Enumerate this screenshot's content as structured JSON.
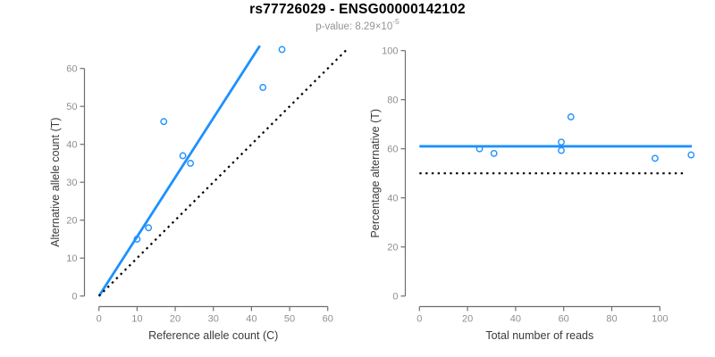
{
  "header": {
    "title": "rs77726029 - ENSG00000142102",
    "subtitle_prefix": "p-value: 8.29×10",
    "subtitle_exponent": "-5"
  },
  "colors": {
    "accent_blue": "#1E90FF",
    "dotted_black": "#000000",
    "axis_gray": "#6e6e6e",
    "tick_label_gray": "#8f8f8f",
    "axis_title_dark": "#3a3a3a",
    "subtitle_gray": "#949494"
  },
  "chart_data": [
    {
      "type": "scatter",
      "panel": "left",
      "xlabel": "Reference allele count (C)",
      "ylabel": "Alternative allele count (T)",
      "xlim": [
        0,
        60
      ],
      "ylim": [
        0,
        60
      ],
      "xticks": [
        0,
        10,
        20,
        30,
        40,
        50,
        60
      ],
      "yticks": [
        0,
        10,
        20,
        30,
        40,
        50,
        60
      ],
      "grid": false,
      "legend": "none",
      "points": [
        [
          10,
          15
        ],
        [
          13,
          18
        ],
        [
          17,
          46
        ],
        [
          22,
          37
        ],
        [
          24,
          35
        ],
        [
          43,
          55
        ],
        [
          48,
          65
        ]
      ],
      "lines": [
        {
          "name": "fit-line",
          "style": "solid",
          "color_key": "accent_blue",
          "from": [
            0,
            0
          ],
          "to": [
            42.2,
            66
          ]
        },
        {
          "name": "identity-line",
          "style": "dotted",
          "color_key": "dotted_black",
          "from": [
            0,
            0
          ],
          "to": [
            65,
            65
          ]
        }
      ]
    },
    {
      "type": "scatter",
      "panel": "right",
      "xlabel": "Total number of reads",
      "ylabel": "Percentage alternative (T)",
      "xlim": [
        0,
        113
      ],
      "ylim": [
        0,
        100
      ],
      "xticks": [
        0,
        20,
        40,
        60,
        80,
        100
      ],
      "yticks": [
        0,
        20,
        40,
        60,
        80,
        100
      ],
      "grid": false,
      "legend": "none",
      "points": [
        [
          25,
          60
        ],
        [
          31,
          58.1
        ],
        [
          59,
          62.7
        ],
        [
          59,
          59.3
        ],
        [
          63,
          73
        ],
        [
          98,
          56.1
        ],
        [
          113,
          57.5
        ]
      ],
      "lines": [
        {
          "name": "mean-percentage-line",
          "style": "solid",
          "color_key": "accent_blue",
          "from": [
            0,
            61
          ],
          "to": [
            113.3,
            61
          ]
        },
        {
          "name": "null-50pct-line",
          "style": "dotted",
          "color_key": "dotted_black",
          "from": [
            0,
            50
          ],
          "to": [
            111,
            50
          ]
        }
      ]
    }
  ]
}
